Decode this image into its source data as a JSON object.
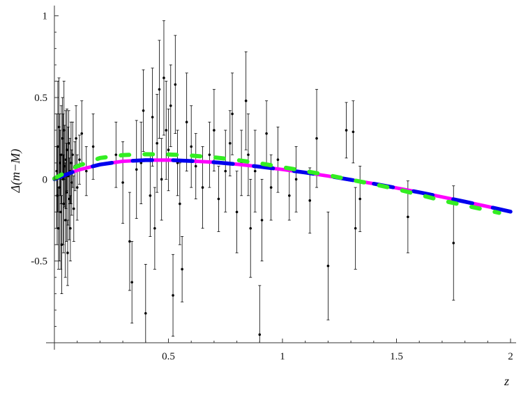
{
  "chart_data": {
    "type": "scatter",
    "title": "",
    "xlabel": "z",
    "ylabel": "Δ(m−M)",
    "xlim": [
      0,
      2
    ],
    "ylim": [
      -1.0,
      1.02
    ],
    "x_axis_at_y": -1.0,
    "y_axis_at_x": 0,
    "xticks": [
      {
        "value": 0.5,
        "label": "0.5"
      },
      {
        "value": 1.0,
        "label": "1"
      },
      {
        "value": 1.5,
        "label": "1.5"
      },
      {
        "value": 2.0,
        "label": "2"
      }
    ],
    "yticks": [
      {
        "value": -0.5,
        "label": "-0.5"
      },
      {
        "value": 0.0,
        "label": "0"
      },
      {
        "value": 0.5,
        "label": "0.5"
      },
      {
        "value": 1.0,
        "label": "1"
      }
    ],
    "grid": false,
    "legend": "none",
    "series": [
      {
        "kind": "errorbar-scatter",
        "color": "#000000",
        "points": [
          {
            "x": 0.01,
            "y": 0.05,
            "e": 0.35
          },
          {
            "x": 0.012,
            "y": -0.1,
            "e": 0.3
          },
          {
            "x": 0.015,
            "y": 0.2,
            "e": 0.4
          },
          {
            "x": 0.018,
            "y": -0.3,
            "e": 0.25
          },
          {
            "x": 0.02,
            "y": 0.32,
            "e": 0.3
          },
          {
            "x": 0.022,
            "y": -0.05,
            "e": 0.45
          },
          {
            "x": 0.025,
            "y": 0.1,
            "e": 0.2
          },
          {
            "x": 0.028,
            "y": -0.2,
            "e": 0.35
          },
          {
            "x": 0.03,
            "y": 0.15,
            "e": 0.3
          },
          {
            "x": 0.032,
            "y": -0.4,
            "e": 0.3
          },
          {
            "x": 0.035,
            "y": 0.25,
            "e": 0.25
          },
          {
            "x": 0.038,
            "y": 0.0,
            "e": 0.4
          },
          {
            "x": 0.04,
            "y": -0.15,
            "e": 0.3
          },
          {
            "x": 0.042,
            "y": 0.3,
            "e": 0.3
          },
          {
            "x": 0.045,
            "y": 0.08,
            "e": 0.25
          },
          {
            "x": 0.048,
            "y": -0.25,
            "e": 0.35
          },
          {
            "x": 0.05,
            "y": 0.12,
            "e": 0.3
          },
          {
            "x": 0.053,
            "y": -0.08,
            "e": 0.3
          },
          {
            "x": 0.055,
            "y": 0.18,
            "e": 0.25
          },
          {
            "x": 0.058,
            "y": -0.45,
            "e": 0.2
          },
          {
            "x": 0.06,
            "y": 0.02,
            "e": 0.3
          },
          {
            "x": 0.063,
            "y": 0.22,
            "e": 0.2
          },
          {
            "x": 0.065,
            "y": -0.12,
            "e": 0.25
          },
          {
            "x": 0.068,
            "y": 0.05,
            "e": 0.2
          },
          {
            "x": 0.07,
            "y": -0.3,
            "e": 0.2
          },
          {
            "x": 0.073,
            "y": 0.1,
            "e": 0.25
          },
          {
            "x": 0.076,
            "y": -0.02,
            "e": 0.2
          },
          {
            "x": 0.08,
            "y": 0.15,
            "e": 0.2
          },
          {
            "x": 0.085,
            "y": -0.18,
            "e": 0.2
          },
          {
            "x": 0.09,
            "y": 0.08,
            "e": 0.15
          },
          {
            "x": 0.095,
            "y": 0.25,
            "e": 0.2
          },
          {
            "x": 0.1,
            "y": -0.05,
            "e": 0.2
          },
          {
            "x": 0.11,
            "y": 0.12,
            "e": 0.15
          },
          {
            "x": 0.12,
            "y": 0.28,
            "e": 0.2
          },
          {
            "x": 0.14,
            "y": 0.05,
            "e": 0.15
          },
          {
            "x": 0.17,
            "y": 0.2,
            "e": 0.2
          },
          {
            "x": 0.27,
            "y": 0.15,
            "e": 0.2
          },
          {
            "x": 0.3,
            "y": -0.02,
            "e": 0.25
          },
          {
            "x": 0.33,
            "y": -0.38,
            "e": 0.3
          },
          {
            "x": 0.34,
            "y": -0.63,
            "e": 0.25
          },
          {
            "x": 0.36,
            "y": 0.06,
            "e": 0.3
          },
          {
            "x": 0.38,
            "y": 0.1,
            "e": 0.25
          },
          {
            "x": 0.39,
            "y": 0.42,
            "e": 0.25
          },
          {
            "x": 0.4,
            "y": -0.82,
            "e": 0.3
          },
          {
            "x": 0.42,
            "y": -0.1,
            "e": 0.25
          },
          {
            "x": 0.43,
            "y": 0.38,
            "e": 0.3
          },
          {
            "x": 0.44,
            "y": -0.3,
            "e": 0.25
          },
          {
            "x": 0.45,
            "y": 0.22,
            "e": 0.3
          },
          {
            "x": 0.46,
            "y": 0.55,
            "e": 0.3
          },
          {
            "x": 0.47,
            "y": 0.0,
            "e": 0.25
          },
          {
            "x": 0.48,
            "y": 0.62,
            "e": 0.35
          },
          {
            "x": 0.49,
            "y": 0.3,
            "e": 0.3
          },
          {
            "x": 0.5,
            "y": 0.18,
            "e": 0.25
          },
          {
            "x": 0.51,
            "y": 0.45,
            "e": 0.25
          },
          {
            "x": 0.52,
            "y": -0.71,
            "e": 0.25
          },
          {
            "x": 0.53,
            "y": 0.58,
            "e": 0.3
          },
          {
            "x": 0.54,
            "y": 0.1,
            "e": 0.2
          },
          {
            "x": 0.55,
            "y": -0.15,
            "e": 0.25
          },
          {
            "x": 0.56,
            "y": -0.55,
            "e": 0.2
          },
          {
            "x": 0.58,
            "y": 0.35,
            "e": 0.3
          },
          {
            "x": 0.6,
            "y": 0.2,
            "e": 0.25
          },
          {
            "x": 0.62,
            "y": 0.08,
            "e": 0.2
          },
          {
            "x": 0.65,
            "y": -0.05,
            "e": 0.25
          },
          {
            "x": 0.68,
            "y": 0.15,
            "e": 0.2
          },
          {
            "x": 0.7,
            "y": 0.3,
            "e": 0.25
          },
          {
            "x": 0.72,
            "y": -0.12,
            "e": 0.2
          },
          {
            "x": 0.75,
            "y": 0.05,
            "e": 0.25
          },
          {
            "x": 0.77,
            "y": 0.22,
            "e": 0.2
          },
          {
            "x": 0.78,
            "y": 0.4,
            "e": 0.25
          },
          {
            "x": 0.8,
            "y": -0.2,
            "e": 0.25
          },
          {
            "x": 0.82,
            "y": 0.1,
            "e": 0.2
          },
          {
            "x": 0.84,
            "y": 0.48,
            "e": 0.3
          },
          {
            "x": 0.85,
            "y": 0.15,
            "e": 0.25
          },
          {
            "x": 0.86,
            "y": -0.3,
            "e": 0.3
          },
          {
            "x": 0.88,
            "y": 0.05,
            "e": 0.25
          },
          {
            "x": 0.9,
            "y": -0.95,
            "e": 0.3
          },
          {
            "x": 0.91,
            "y": -0.25,
            "e": 0.25
          },
          {
            "x": 0.93,
            "y": 0.28,
            "e": 0.2
          },
          {
            "x": 0.95,
            "y": -0.05,
            "e": 0.2
          },
          {
            "x": 0.98,
            "y": 0.12,
            "e": 0.2
          },
          {
            "x": 1.03,
            "y": -0.1,
            "e": 0.15
          },
          {
            "x": 1.06,
            "y": 0.0,
            "e": 0.2
          },
          {
            "x": 1.12,
            "y": -0.13,
            "e": 0.2
          },
          {
            "x": 1.15,
            "y": 0.25,
            "e": 0.3
          },
          {
            "x": 1.2,
            "y": -0.53,
            "e": 0.33
          },
          {
            "x": 1.28,
            "y": 0.3,
            "e": 0.17
          },
          {
            "x": 1.31,
            "y": 0.29,
            "e": 0.19
          },
          {
            "x": 1.32,
            "y": -0.3,
            "e": 0.25
          },
          {
            "x": 1.34,
            "y": -0.12,
            "e": 0.2
          },
          {
            "x": 1.55,
            "y": -0.23,
            "e": 0.22
          },
          {
            "x": 1.75,
            "y": -0.39,
            "e": 0.35
          }
        ]
      },
      {
        "kind": "curve",
        "color": "#ff00ff",
        "style": "solid",
        "x": [
          0.0,
          0.1,
          0.2,
          0.3,
          0.4,
          0.5,
          0.6,
          0.7,
          0.8,
          0.9,
          1.0,
          1.1,
          1.2,
          1.3,
          1.4,
          1.5,
          1.6,
          1.7,
          1.8,
          1.9,
          2.0
        ],
        "y": [
          0.0,
          0.055,
          0.09,
          0.11,
          0.117,
          0.118,
          0.112,
          0.104,
          0.092,
          0.077,
          0.06,
          0.041,
          0.02,
          -0.003,
          -0.027,
          -0.053,
          -0.08,
          -0.108,
          -0.137,
          -0.167,
          -0.198
        ]
      },
      {
        "kind": "curve",
        "color": "#0000ee",
        "style": "long-dash",
        "x": [
          0.0,
          0.1,
          0.2,
          0.3,
          0.4,
          0.5,
          0.6,
          0.7,
          0.8,
          0.9,
          1.0,
          1.1,
          1.2,
          1.3,
          1.4,
          1.5,
          1.6,
          1.7,
          1.8,
          1.9,
          2.0
        ],
        "y": [
          0.0,
          0.055,
          0.09,
          0.11,
          0.117,
          0.118,
          0.112,
          0.104,
          0.092,
          0.077,
          0.06,
          0.041,
          0.02,
          -0.003,
          -0.027,
          -0.053,
          -0.08,
          -0.108,
          -0.137,
          -0.167,
          -0.198
        ]
      },
      {
        "kind": "curve",
        "color": "#33ee22",
        "style": "short-dash",
        "x": [
          0.0,
          0.1,
          0.2,
          0.3,
          0.4,
          0.5,
          0.6,
          0.7,
          0.8,
          0.9,
          1.0,
          1.1,
          1.2,
          1.3,
          1.4,
          1.5,
          1.6,
          1.7,
          1.8,
          1.9,
          1.95
        ],
        "y": [
          0.005,
          0.08,
          0.13,
          0.148,
          0.153,
          0.152,
          0.145,
          0.134,
          0.118,
          0.098,
          0.074,
          0.05,
          0.025,
          -0.003,
          -0.03,
          -0.06,
          -0.095,
          -0.13,
          -0.16,
          -0.19,
          -0.205
        ]
      }
    ]
  }
}
